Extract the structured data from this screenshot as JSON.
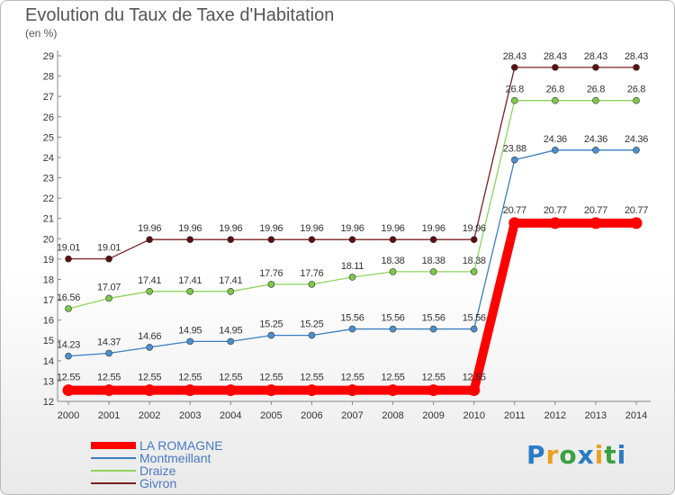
{
  "page": {
    "title": "Evolution du Taux de Taxe d'Habitation",
    "unit_label": "(en %)",
    "logo_text": "Proxiti"
  },
  "chart_data": {
    "type": "line",
    "title": "Evolution du Taux de Taxe d'Habitation",
    "ylabel": "(en %)",
    "xlabel": "",
    "x": [
      "2000",
      "2001",
      "2002",
      "2003",
      "2004",
      "2005",
      "2006",
      "2007",
      "2008",
      "2009",
      "2010",
      "2011",
      "2012",
      "2013",
      "2014"
    ],
    "ylim": [
      12,
      29
    ],
    "yticks": [
      12,
      13,
      14,
      15,
      16,
      17,
      18,
      19,
      20,
      21,
      22,
      23,
      24,
      25,
      26,
      27,
      28,
      29
    ],
    "grid": "none",
    "legend_position": "bottom-left",
    "series": [
      {
        "name": "LA ROMAGNE",
        "color": "#ff0000",
        "emphasis": true,
        "values": [
          12.55,
          12.55,
          12.55,
          12.55,
          12.55,
          12.55,
          12.55,
          12.55,
          12.55,
          12.55,
          12.55,
          20.77,
          20.77,
          20.77,
          20.77
        ],
        "labels": [
          "12.55",
          "12.55",
          "12.55",
          "12.55",
          "12.55",
          "12.55",
          "12.55",
          "12.55",
          "12.55",
          "12.55",
          "12.55",
          "20.77",
          "20.77",
          "20.77",
          "20.77"
        ]
      },
      {
        "name": "Montmeillant",
        "color": "#3a7fc1",
        "marker_color": "#4a90d0",
        "values": [
          14.23,
          14.37,
          14.66,
          14.95,
          14.95,
          15.25,
          15.25,
          15.56,
          15.56,
          15.56,
          15.56,
          23.88,
          24.36,
          24.36,
          24.36
        ],
        "labels": [
          "14.23",
          "14.37",
          "14.66",
          "14.95",
          "14.95",
          "15.25",
          "15.25",
          "15.56",
          "15.56",
          "15.56",
          "15.56",
          "23.88",
          "24.36",
          "24.36",
          "24.36"
        ]
      },
      {
        "name": "Draize",
        "color": "#8ed45a",
        "marker_color": "#7dc84a",
        "values": [
          16.56,
          17.07,
          17.41,
          17.41,
          17.41,
          17.76,
          17.76,
          18.11,
          18.38,
          18.38,
          18.38,
          26.8,
          26.8,
          26.8,
          26.8
        ],
        "labels": [
          "16.56",
          "17.07",
          "17.41",
          "17.41",
          "17.41",
          "17.76",
          "17.76",
          "18.11",
          "18.38",
          "18.38",
          "18.38",
          "26.8",
          "26.8",
          "26.8",
          "26.8"
        ]
      },
      {
        "name": "Givron",
        "color": "#7a2020",
        "marker_color": "#5a1010",
        "values": [
          19.01,
          19.01,
          19.96,
          19.96,
          19.96,
          19.96,
          19.96,
          19.96,
          19.96,
          19.96,
          19.96,
          28.43,
          28.43,
          28.43,
          28.43
        ],
        "labels": [
          "19.01",
          "19.01",
          "19.96",
          "19.96",
          "19.96",
          "19.96",
          "19.96",
          "19.96",
          "19.96",
          "19.96",
          "19.96",
          "28.43",
          "28.43",
          "28.43",
          "28.43"
        ]
      }
    ]
  }
}
